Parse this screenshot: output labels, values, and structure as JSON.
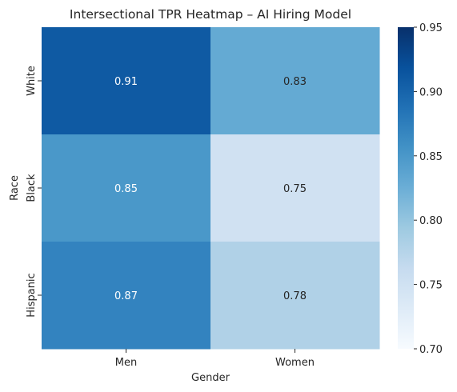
{
  "chart_data": {
    "type": "heatmap",
    "title": "Intersectional TPR Heatmap – AI Hiring Model",
    "xlabel": "Gender",
    "ylabel": "Race",
    "x_categories": [
      "Men",
      "Women"
    ],
    "y_categories": [
      "White",
      "Black",
      "Hispanic"
    ],
    "values": [
      [
        0.91,
        0.83
      ],
      [
        0.85,
        0.75
      ],
      [
        0.87,
        0.78
      ]
    ],
    "annotations": [
      [
        "0.91",
        "0.83"
      ],
      [
        "0.85",
        "0.75"
      ],
      [
        "0.87",
        "0.78"
      ]
    ],
    "colorbar": {
      "min": 0.7,
      "max": 0.95,
      "ticks": [
        0.7,
        0.75,
        0.8,
        0.85,
        0.9,
        0.95
      ],
      "tick_labels": [
        "0.70",
        "0.75",
        "0.80",
        "0.85",
        "0.90",
        "0.95"
      ],
      "colormap": "Blues"
    },
    "grid": false,
    "legend": "colorbar-right"
  }
}
